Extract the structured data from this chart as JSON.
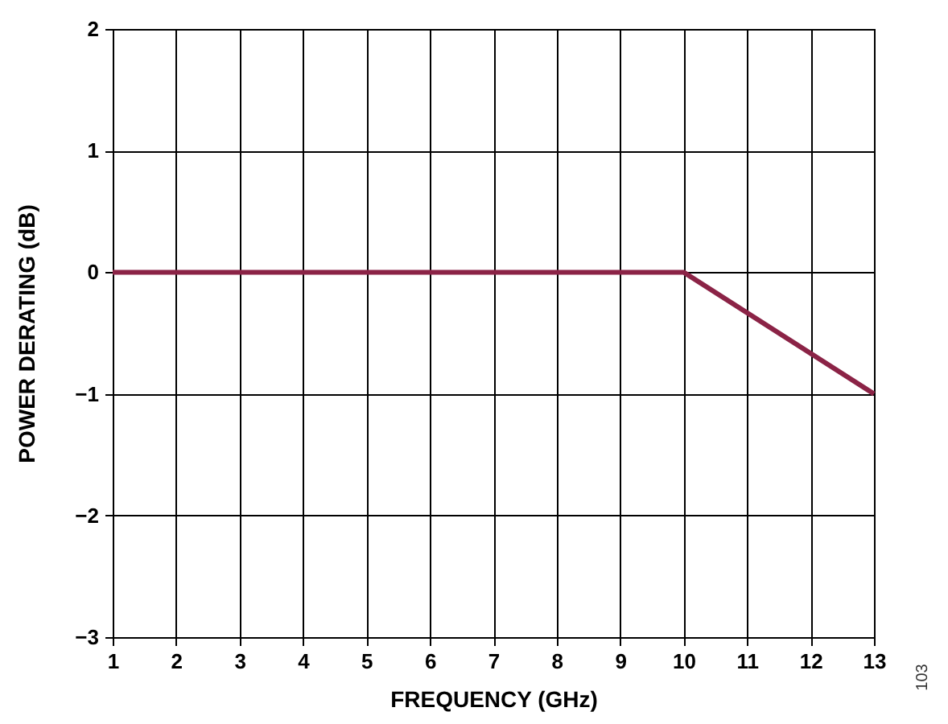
{
  "chart_data": {
    "type": "line",
    "xlabel": "FREQUENCY (GHz)",
    "ylabel": "POWER DERATING (dB)",
    "x": [
      1,
      10,
      13
    ],
    "series": [
      {
        "color": "#8b2346",
        "values": [
          0,
          0,
          -1
        ]
      }
    ],
    "xlim": [
      1,
      13
    ],
    "xticks": [
      1,
      2,
      3,
      4,
      5,
      6,
      7,
      8,
      9,
      10,
      11,
      12,
      13
    ],
    "ylim": [
      -3,
      2
    ],
    "yticks": [
      {
        "value": -3,
        "label": "−3"
      },
      {
        "value": -2,
        "label": "−2"
      },
      {
        "value": -1,
        "label": "−1"
      },
      0,
      1,
      2
    ],
    "grid": true,
    "marker": "none",
    "line_style": "solid",
    "annotations": [
      "103"
    ]
  }
}
